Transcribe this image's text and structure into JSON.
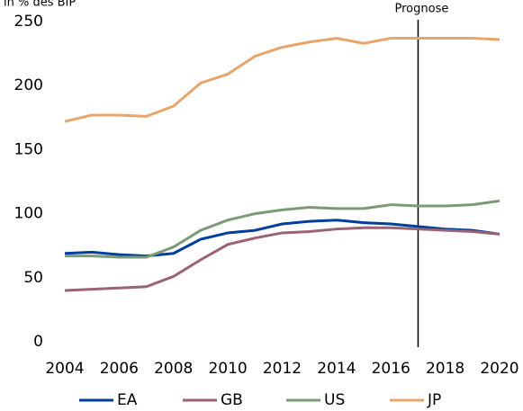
{
  "chart_data": {
    "type": "line",
    "ylabel": "in % des BIP",
    "annotation": "Prognose",
    "annotation_x": 2017,
    "x": [
      2004,
      2005,
      2006,
      2007,
      2008,
      2009,
      2010,
      2011,
      2012,
      2013,
      2014,
      2015,
      2016,
      2017,
      2018,
      2019,
      2020
    ],
    "series": [
      {
        "name": "EA",
        "color": "#003e9e",
        "values": [
          69,
          70,
          68,
          67,
          69,
          80,
          85,
          87,
          92,
          94,
          95,
          93,
          92,
          90,
          88,
          87,
          84
        ]
      },
      {
        "name": "GB",
        "color": "#9b6273",
        "values": [
          40,
          41,
          42,
          43,
          51,
          64,
          76,
          81,
          85,
          86,
          88,
          89,
          89,
          88,
          87,
          86,
          84
        ]
      },
      {
        "name": "US",
        "color": "#7b9b76",
        "values": [
          67,
          67,
          66,
          66,
          74,
          87,
          95,
          100,
          103,
          105,
          104,
          104,
          107,
          106,
          106,
          107,
          110
        ]
      },
      {
        "name": "JP",
        "color": "#e8a56b",
        "values": [
          172,
          177,
          177,
          176,
          184,
          202,
          209,
          223,
          230,
          234,
          237,
          233,
          237,
          237,
          237,
          237,
          236
        ]
      }
    ],
    "xlim": [
      2004,
      2020
    ],
    "xticks": [
      2004,
      2006,
      2008,
      2010,
      2012,
      2014,
      2016,
      2018,
      2020
    ],
    "ylim": [
      0,
      250
    ],
    "yticks": [
      0,
      50,
      100,
      150,
      200,
      250
    ]
  }
}
